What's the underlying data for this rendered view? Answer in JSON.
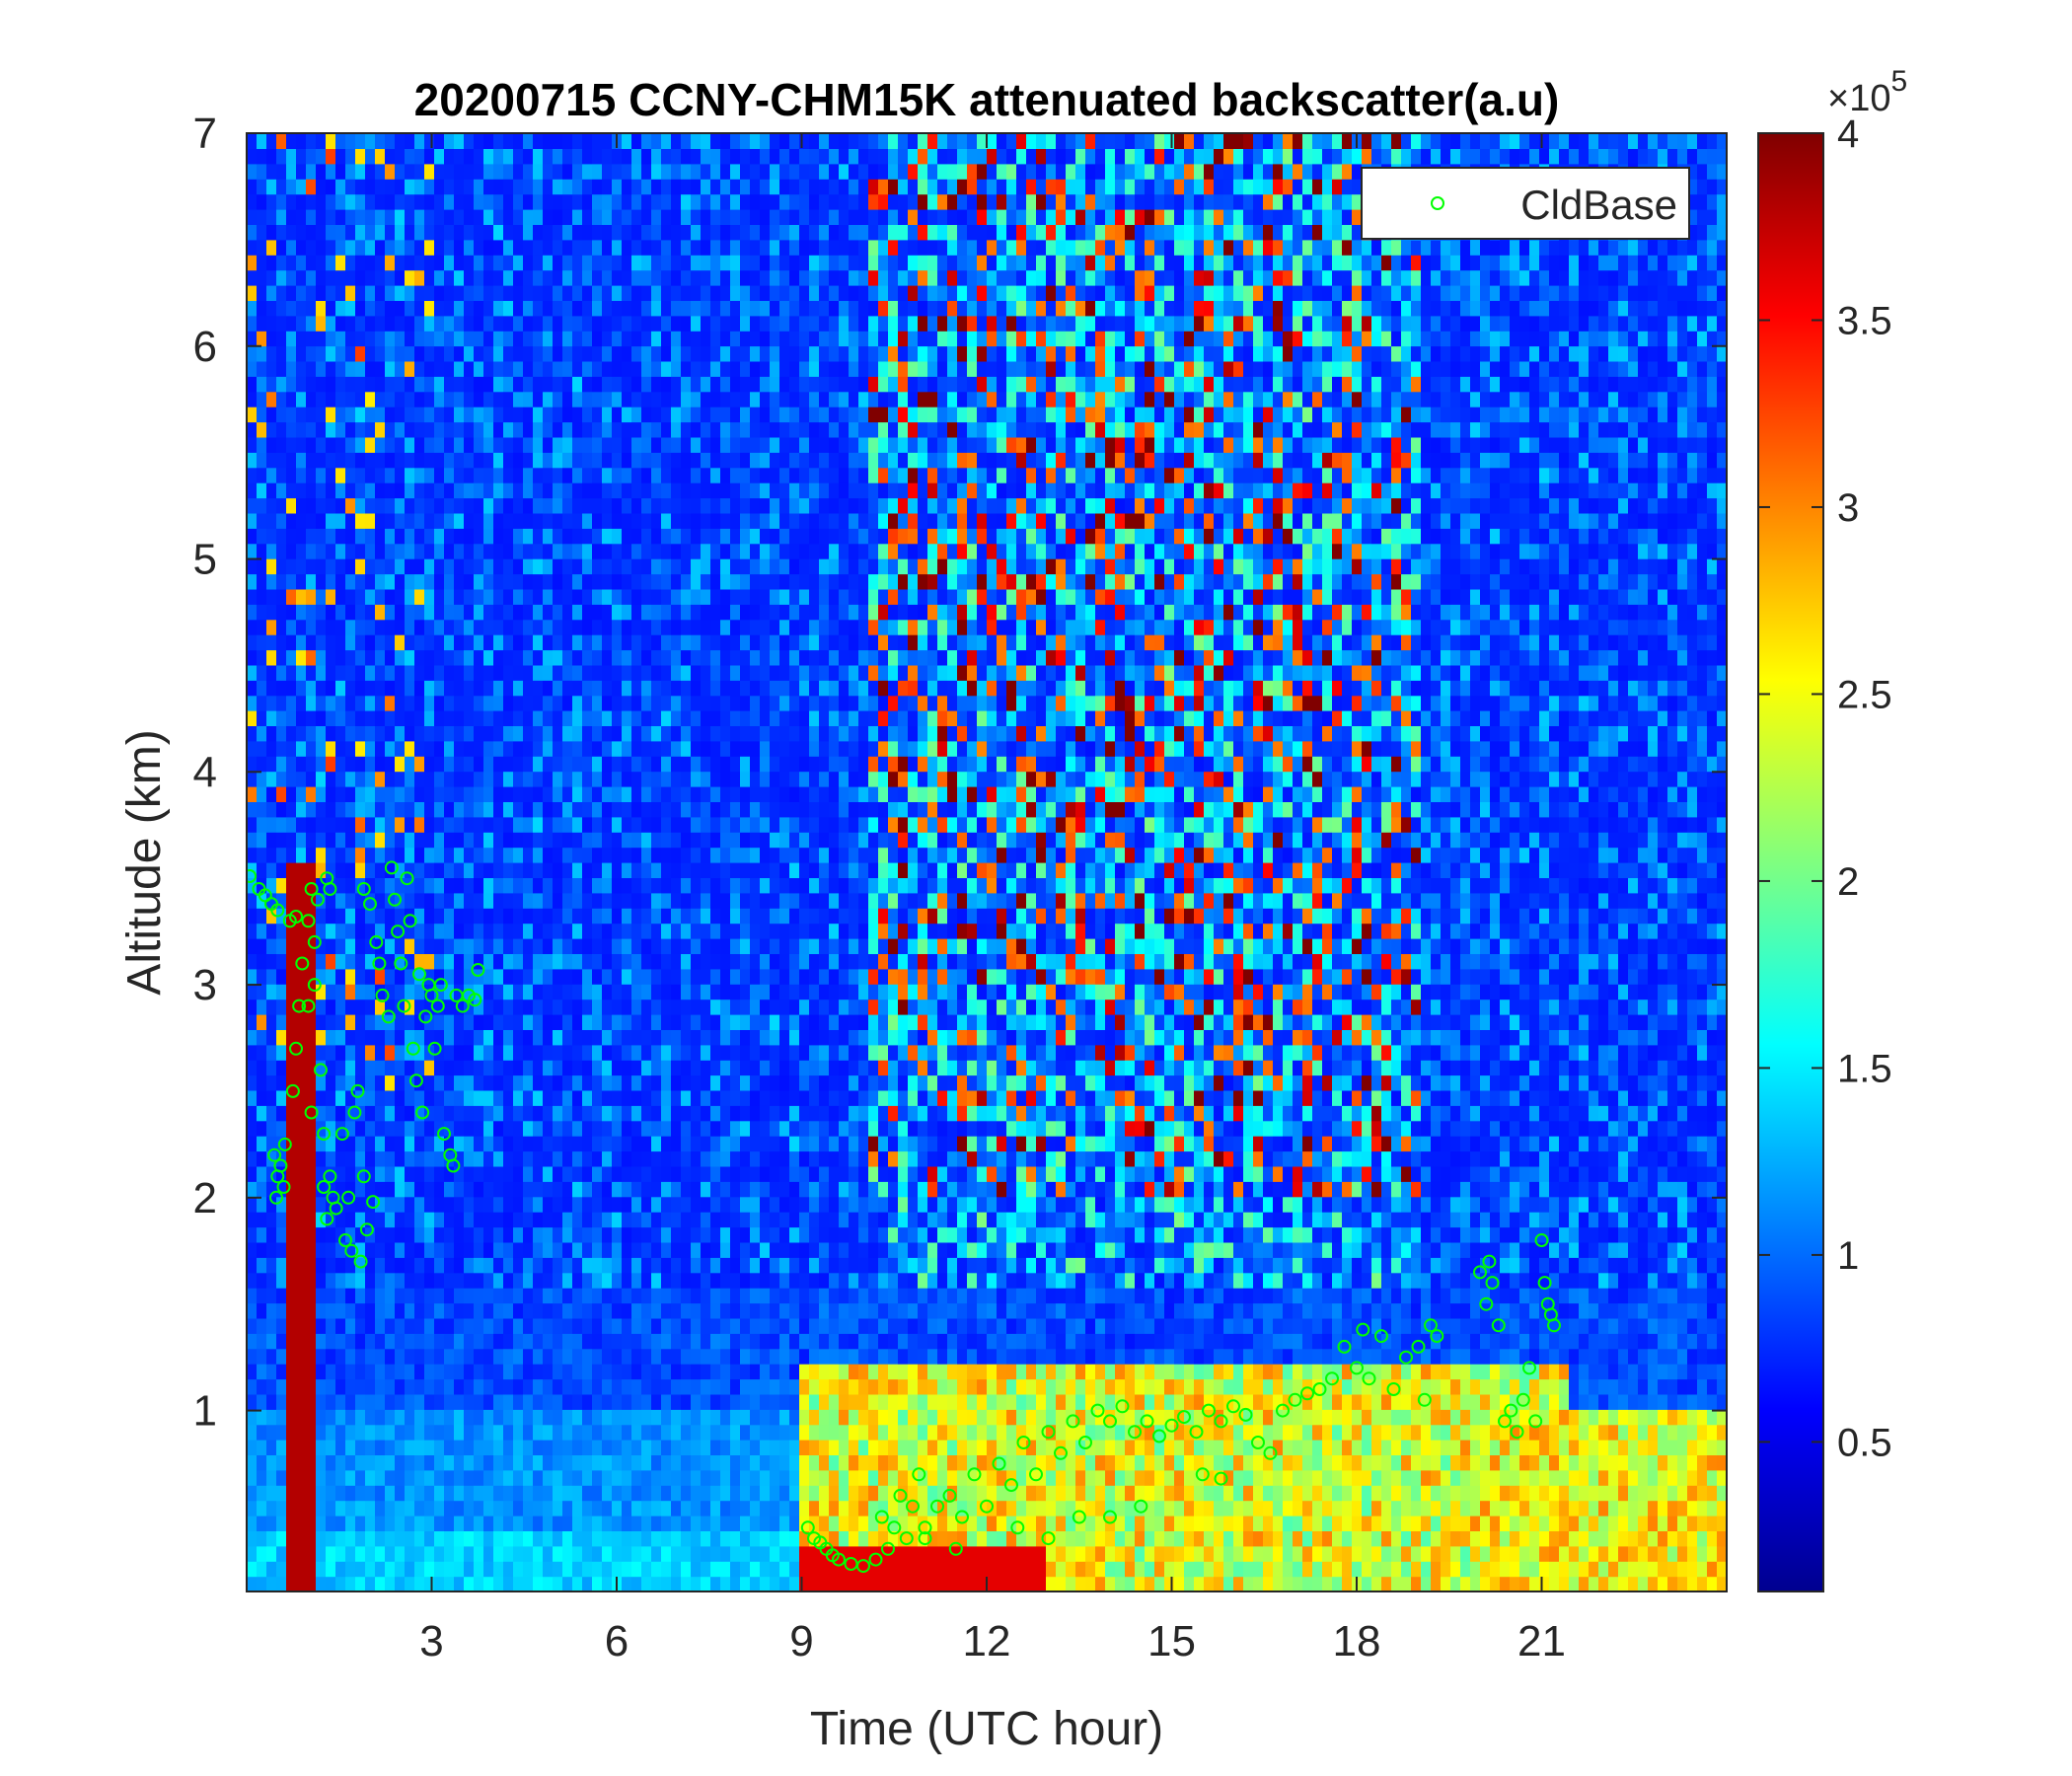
{
  "chart_data": {
    "type": "heatmap",
    "title": "20200715 CCNY-CHM15K attenuated backscatter(a.u)",
    "xlabel": "Time (UTC hour)",
    "ylabel": "Altitude (km)",
    "xlim": [
      0,
      24
    ],
    "ylim": [
      0.15,
      7
    ],
    "xticks": [
      3,
      6,
      9,
      12,
      15,
      18,
      21
    ],
    "yticks": [
      1,
      2,
      3,
      4,
      5,
      6,
      7
    ],
    "colorbar": {
      "colormap": "jet",
      "clim": [
        0.1,
        4
      ],
      "ticks": [
        0.5,
        1,
        1.5,
        2,
        2.5,
        3,
        3.5,
        4
      ],
      "exponent_label": "×10",
      "exponent": "5"
    },
    "legend": {
      "location": "top-right",
      "entries": [
        "CldBase"
      ]
    },
    "marker_color": "#00ff00",
    "series": [
      {
        "name": "CldBase",
        "marker": "circle",
        "points": [
          [
            0.05,
            3.51
          ],
          [
            0.2,
            3.45
          ],
          [
            0.3,
            3.42
          ],
          [
            0.4,
            3.38
          ],
          [
            0.5,
            3.35
          ],
          [
            0.45,
            2.2
          ],
          [
            0.5,
            2.1
          ],
          [
            0.55,
            2.15
          ],
          [
            0.6,
            2.05
          ],
          [
            0.62,
            2.25
          ],
          [
            0.48,
            2.0
          ],
          [
            0.7,
            3.3
          ],
          [
            0.8,
            3.32
          ],
          [
            0.85,
            2.9
          ],
          [
            0.8,
            2.7
          ],
          [
            0.75,
            2.5
          ],
          [
            0.9,
            3.1
          ],
          [
            1.0,
            3.3
          ],
          [
            1.05,
            3.45
          ],
          [
            1.1,
            3.2
          ],
          [
            1.0,
            2.9
          ],
          [
            1.05,
            2.4
          ],
          [
            1.1,
            3.0
          ],
          [
            1.15,
            3.4
          ],
          [
            1.2,
            2.6
          ],
          [
            1.25,
            2.3
          ],
          [
            1.3,
            3.5
          ],
          [
            1.35,
            3.45
          ],
          [
            1.25,
            2.05
          ],
          [
            1.3,
            1.9
          ],
          [
            1.35,
            2.1
          ],
          [
            1.4,
            2.0
          ],
          [
            1.45,
            1.95
          ],
          [
            1.55,
            2.3
          ],
          [
            1.6,
            1.8
          ],
          [
            1.65,
            2.0
          ],
          [
            1.7,
            1.75
          ],
          [
            1.75,
            2.4
          ],
          [
            1.8,
            2.5
          ],
          [
            1.85,
            1.7
          ],
          [
            1.9,
            2.1
          ],
          [
            1.95,
            1.85
          ],
          [
            2.05,
            1.98
          ],
          [
            1.9,
            3.45
          ],
          [
            2.0,
            3.38
          ],
          [
            2.1,
            3.2
          ],
          [
            2.15,
            3.1
          ],
          [
            2.2,
            2.95
          ],
          [
            2.3,
            2.85
          ],
          [
            2.35,
            3.55
          ],
          [
            2.4,
            3.4
          ],
          [
            2.45,
            3.25
          ],
          [
            2.5,
            3.1
          ],
          [
            2.55,
            2.9
          ],
          [
            2.6,
            3.5
          ],
          [
            2.65,
            3.3
          ],
          [
            2.7,
            2.7
          ],
          [
            2.75,
            2.55
          ],
          [
            2.8,
            3.05
          ],
          [
            2.85,
            2.4
          ],
          [
            2.9,
            2.85
          ],
          [
            2.95,
            3.0
          ],
          [
            3.0,
            2.95
          ],
          [
            3.05,
            2.7
          ],
          [
            3.1,
            2.9
          ],
          [
            3.15,
            3.0
          ],
          [
            3.2,
            2.3
          ],
          [
            3.3,
            2.2
          ],
          [
            3.35,
            2.15
          ],
          [
            3.4,
            2.95
          ],
          [
            3.5,
            2.9
          ],
          [
            3.6,
            2.95
          ],
          [
            3.7,
            2.93
          ],
          [
            3.75,
            3.07
          ],
          [
            9.1,
            0.45
          ],
          [
            9.2,
            0.4
          ],
          [
            9.3,
            0.38
          ],
          [
            9.4,
            0.35
          ],
          [
            9.5,
            0.32
          ],
          [
            9.6,
            0.3
          ],
          [
            9.8,
            0.28
          ],
          [
            10.0,
            0.27
          ],
          [
            10.2,
            0.3
          ],
          [
            10.3,
            0.5
          ],
          [
            10.4,
            0.35
          ],
          [
            10.5,
            0.45
          ],
          [
            10.6,
            0.6
          ],
          [
            10.7,
            0.4
          ],
          [
            10.8,
            0.55
          ],
          [
            10.9,
            0.7
          ],
          [
            11.0,
            0.45
          ],
          [
            11.2,
            0.55
          ],
          [
            11.4,
            0.6
          ],
          [
            11.6,
            0.5
          ],
          [
            11.8,
            0.7
          ],
          [
            12.0,
            0.55
          ],
          [
            12.2,
            0.75
          ],
          [
            12.4,
            0.65
          ],
          [
            12.6,
            0.85
          ],
          [
            12.8,
            0.7
          ],
          [
            13.0,
            0.9
          ],
          [
            13.2,
            0.8
          ],
          [
            13.4,
            0.95
          ],
          [
            13.6,
            0.85
          ],
          [
            13.8,
            1.0
          ],
          [
            14.0,
            0.95
          ],
          [
            14.2,
            1.02
          ],
          [
            14.4,
            0.9
          ],
          [
            14.6,
            0.95
          ],
          [
            14.8,
            0.88
          ],
          [
            15.0,
            0.93
          ],
          [
            15.2,
            0.97
          ],
          [
            15.4,
            0.9
          ],
          [
            15.6,
            1.0
          ],
          [
            15.8,
            0.95
          ],
          [
            16.0,
            1.02
          ],
          [
            16.2,
            0.98
          ],
          [
            16.4,
            0.85
          ],
          [
            16.6,
            0.8
          ],
          [
            16.8,
            1.0
          ],
          [
            17.0,
            1.05
          ],
          [
            17.2,
            1.08
          ],
          [
            17.4,
            1.1
          ],
          [
            17.6,
            1.15
          ],
          [
            17.8,
            1.3
          ],
          [
            18.0,
            1.2
          ],
          [
            18.1,
            1.38
          ],
          [
            18.2,
            1.15
          ],
          [
            18.4,
            1.35
          ],
          [
            18.6,
            1.1
          ],
          [
            18.8,
            1.25
          ],
          [
            19.0,
            1.3
          ],
          [
            19.1,
            1.05
          ],
          [
            19.2,
            1.4
          ],
          [
            19.3,
            1.35
          ],
          [
            11.0,
            0.4
          ],
          [
            11.5,
            0.35
          ],
          [
            12.5,
            0.45
          ],
          [
            13.0,
            0.4
          ],
          [
            13.5,
            0.5
          ],
          [
            14.0,
            0.5
          ],
          [
            14.5,
            0.55
          ],
          [
            15.5,
            0.7
          ],
          [
            15.8,
            0.68
          ],
          [
            20.0,
            1.65
          ],
          [
            20.1,
            1.5
          ],
          [
            20.15,
            1.7
          ],
          [
            20.2,
            1.6
          ],
          [
            20.3,
            1.4
          ],
          [
            20.4,
            0.95
          ],
          [
            20.5,
            1.0
          ],
          [
            20.6,
            0.9
          ],
          [
            20.7,
            1.05
          ],
          [
            20.8,
            1.2
          ],
          [
            20.9,
            0.95
          ],
          [
            21.0,
            1.8
          ],
          [
            21.05,
            1.6
          ],
          [
            21.1,
            1.5
          ],
          [
            21.15,
            1.45
          ],
          [
            21.2,
            1.4
          ]
        ]
      }
    ]
  }
}
